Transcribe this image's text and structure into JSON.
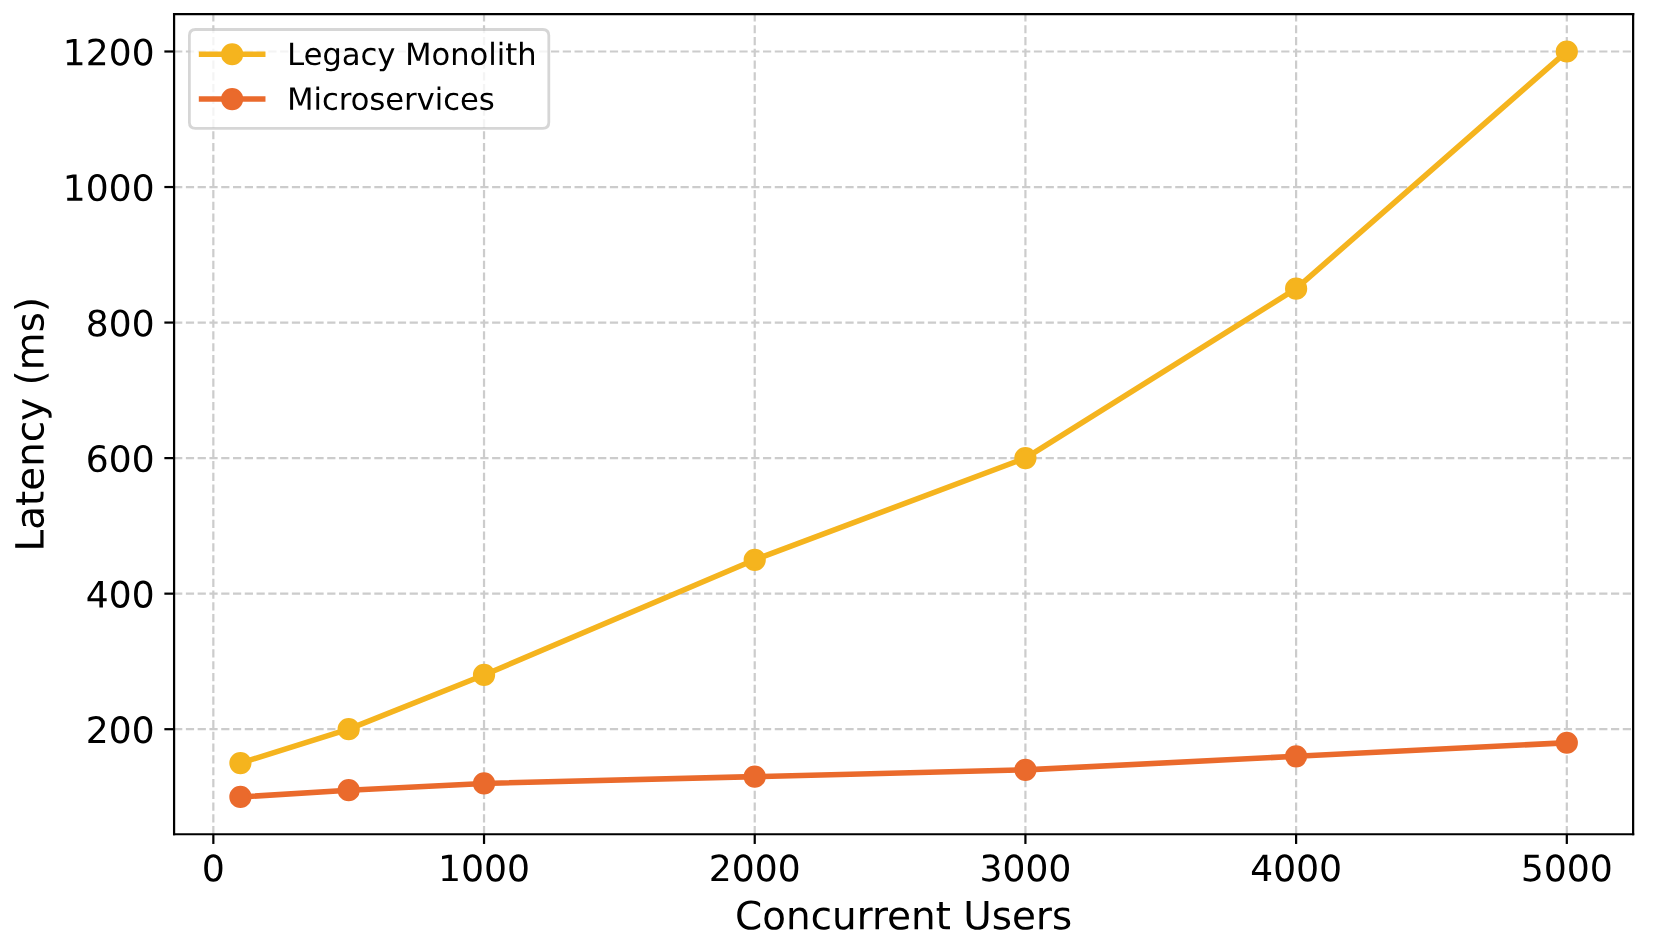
{
  "chart_data": {
    "type": "line",
    "xlabel": "Concurrent Users",
    "ylabel": "Latency (ms)",
    "x": [
      100,
      500,
      1000,
      2000,
      3000,
      4000,
      5000
    ],
    "series": [
      {
        "name": "Legacy Monolith",
        "color": "#f5b41e",
        "values": [
          150,
          200,
          280,
          450,
          600,
          850,
          1200
        ]
      },
      {
        "name": "Microservices",
        "color": "#ea6a2c",
        "values": [
          100,
          110,
          120,
          130,
          140,
          160,
          180
        ]
      }
    ],
    "xlim": [
      -145,
      5245
    ],
    "ylim": [
      45,
      1255
    ],
    "xticks": [
      0,
      1000,
      2000,
      3000,
      4000,
      5000
    ],
    "yticks": [
      200,
      400,
      600,
      800,
      1000,
      1200
    ],
    "grid": true,
    "legend": "top left",
    "marker": "circle",
    "line_style": "solid"
  }
}
